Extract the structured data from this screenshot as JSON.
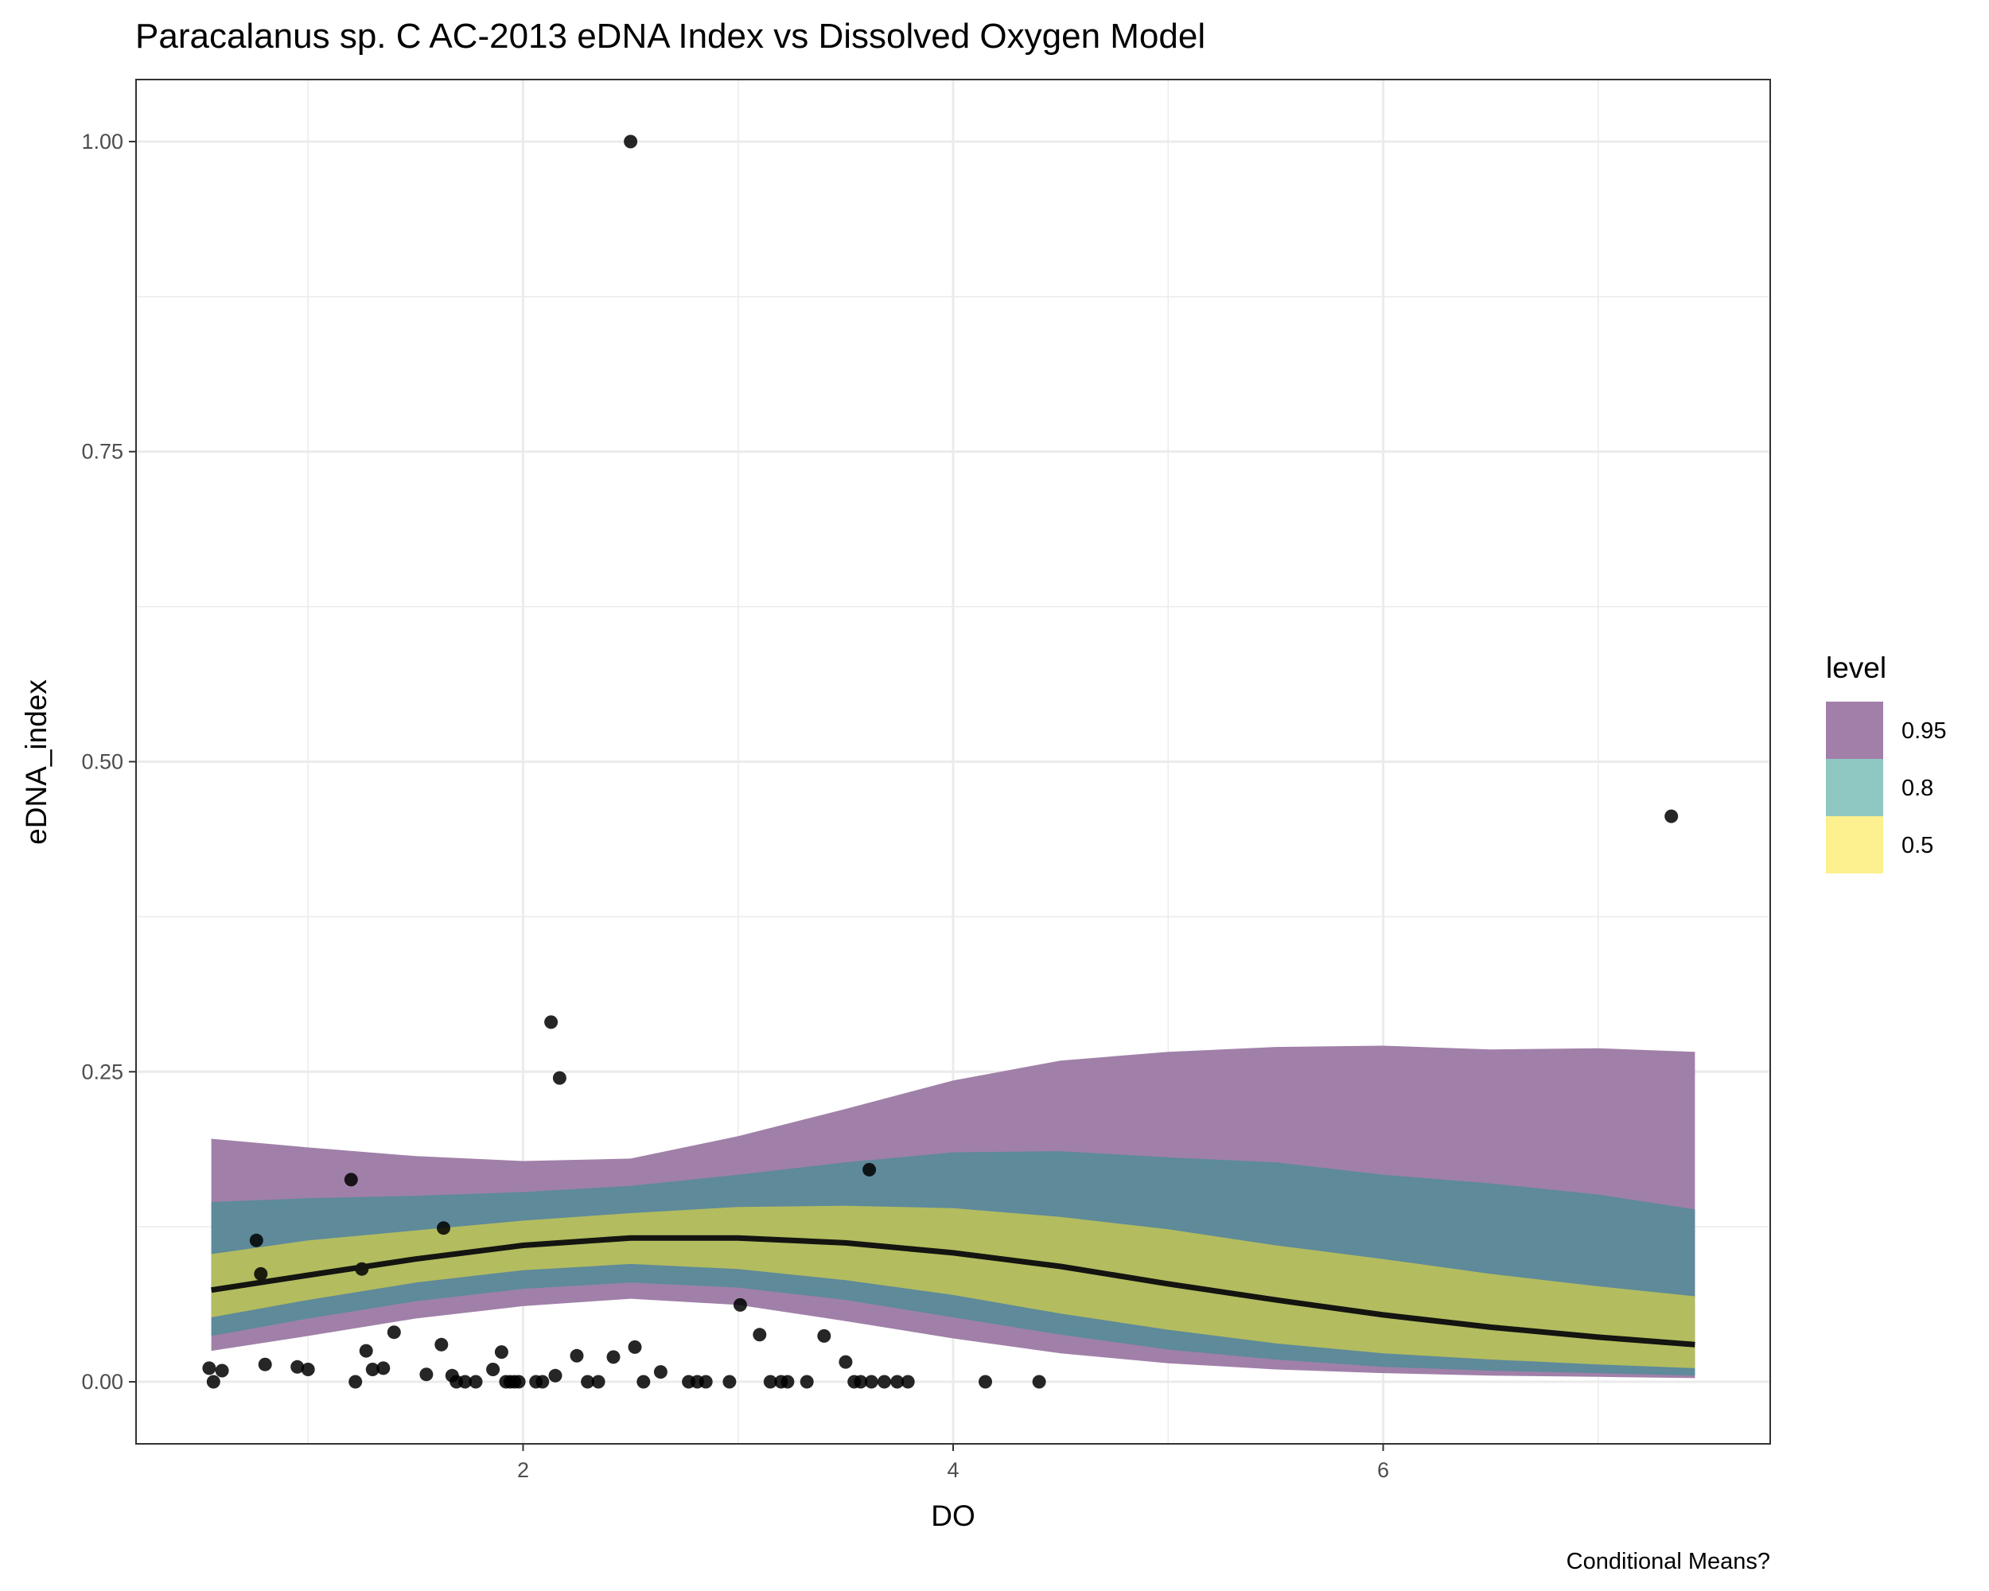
{
  "chart_data": {
    "type": "area",
    "title": "Paracalanus sp. C AC-2013 eDNA Index vs Dissolved Oxygen Model",
    "xlabel": "DO",
    "ylabel": "eDNA_index",
    "caption": "Conditional Means?",
    "xlim": [
      0.2,
      7.8
    ],
    "ylim": [
      -0.05,
      1.05
    ],
    "x_ticks": [
      2,
      4,
      6
    ],
    "x_tick_labels": [
      "2",
      "4",
      "6"
    ],
    "y_ticks": [
      0,
      0.25,
      0.5,
      0.75,
      1.0
    ],
    "y_tick_labels": [
      "0.00",
      "0.25",
      "0.50",
      "0.75",
      "1.00"
    ],
    "grid": true,
    "legend": {
      "title": "level",
      "position": "right",
      "entries": [
        {
          "label": "0.95",
          "color": "#a27fa9"
        },
        {
          "label": "0.8",
          "color": "#8fc7c3"
        },
        {
          "label": "0.5",
          "color": "#fcf08f"
        }
      ]
    },
    "band_colors": {
      "0.95": "#a080a8",
      "0.8": "#5e8a9a",
      "0.5": "#b3bc5f"
    },
    "line_color": "#141410",
    "point_color": "#000000",
    "bands": {
      "x": [
        0.55,
        1.0,
        1.5,
        2.0,
        2.5,
        3.0,
        3.5,
        4.0,
        4.5,
        5.0,
        5.5,
        6.0,
        6.5,
        7.0,
        7.45
      ],
      "mean": [
        0.074,
        0.086,
        0.099,
        0.11,
        0.116,
        0.116,
        0.112,
        0.104,
        0.093,
        0.079,
        0.066,
        0.054,
        0.044,
        0.036,
        0.03
      ],
      "lower50": [
        0.052,
        0.066,
        0.08,
        0.09,
        0.095,
        0.091,
        0.082,
        0.07,
        0.055,
        0.042,
        0.031,
        0.023,
        0.018,
        0.014,
        0.011
      ],
      "upper50": [
        0.103,
        0.114,
        0.122,
        0.13,
        0.136,
        0.141,
        0.142,
        0.14,
        0.133,
        0.123,
        0.11,
        0.099,
        0.087,
        0.077,
        0.069
      ],
      "lower80": [
        0.037,
        0.051,
        0.065,
        0.075,
        0.08,
        0.076,
        0.066,
        0.052,
        0.038,
        0.026,
        0.018,
        0.012,
        0.009,
        0.007,
        0.005
      ],
      "upper80": [
        0.145,
        0.148,
        0.15,
        0.153,
        0.158,
        0.167,
        0.177,
        0.185,
        0.186,
        0.181,
        0.177,
        0.167,
        0.16,
        0.151,
        0.139
      ],
      "lower95": [
        0.025,
        0.037,
        0.051,
        0.061,
        0.067,
        0.062,
        0.049,
        0.035,
        0.023,
        0.015,
        0.01,
        0.007,
        0.005,
        0.004,
        0.003
      ],
      "upper95": [
        0.196,
        0.189,
        0.182,
        0.178,
        0.18,
        0.198,
        0.22,
        0.243,
        0.259,
        0.266,
        0.27,
        0.271,
        0.268,
        0.269,
        0.266
      ]
    },
    "points": {
      "x": [
        0.54,
        0.56,
        0.6,
        0.8,
        0.95,
        1.0,
        1.22,
        1.27,
        1.3,
        1.35,
        1.4,
        1.55,
        1.62,
        1.67,
        1.69,
        1.73,
        1.78,
        1.86,
        1.9,
        1.92,
        1.94,
        1.96,
        1.98,
        2.06,
        2.09,
        2.13,
        2.15,
        2.17,
        2.25,
        2.3,
        2.35,
        2.42,
        2.5,
        2.52,
        2.56,
        2.64,
        2.77,
        2.81,
        2.85,
        2.96,
        3.01,
        3.1,
        3.15,
        3.2,
        3.23,
        3.32,
        3.4,
        3.5,
        3.54,
        3.57,
        3.62,
        3.68,
        3.74,
        3.79,
        4.15,
        4.4,
        7.34,
        0.76,
        0.78,
        1.25,
        1.2,
        1.63,
        3.61
      ],
      "y": [
        0.011,
        0.0,
        0.009,
        0.014,
        0.012,
        0.01,
        0.0,
        0.025,
        0.01,
        0.011,
        0.04,
        0.006,
        0.03,
        0.005,
        0.0,
        0.0,
        0.0,
        0.01,
        0.024,
        0.0,
        0.0,
        0.0,
        0.0,
        0.0,
        0.0,
        0.29,
        0.005,
        0.245,
        0.021,
        0.0,
        0.0,
        0.02,
        1.0,
        0.028,
        0.0,
        0.008,
        0.0,
        0.0,
        0.0,
        0.0,
        0.062,
        0.038,
        0.0,
        0.0,
        0.0,
        0.0,
        0.037,
        0.016,
        0.0,
        0.0,
        0.0,
        0.0,
        0.0,
        0.0,
        0.0,
        0.0,
        0.456,
        0.114,
        0.087,
        0.091,
        0.163,
        0.124,
        0.171
      ]
    }
  }
}
